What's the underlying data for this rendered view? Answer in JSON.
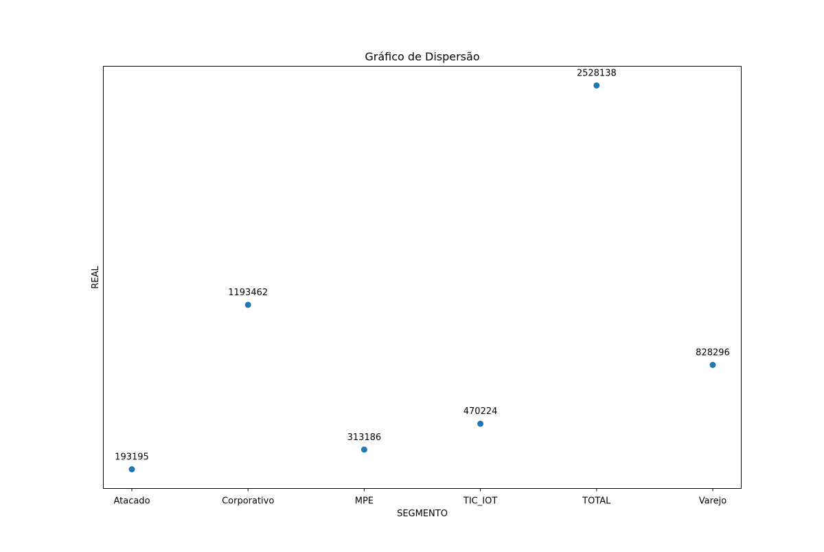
{
  "chart_data": {
    "type": "scatter",
    "title": "Gráfico de Dispersão",
    "xlabel": "SEGMENTO",
    "ylabel": "REAL",
    "categories": [
      "Atacado",
      "Corporativo",
      "MPE",
      "TIC_IOT",
      "TOTAL",
      "Varejo"
    ],
    "values": [
      193195,
      1193462,
      313186,
      470224,
      2528138,
      828296
    ],
    "ylim": [
      76448,
      2644885
    ],
    "y_ticks_visible": false,
    "grid": false,
    "legend": "none",
    "marker_color": "#1f77b4"
  }
}
